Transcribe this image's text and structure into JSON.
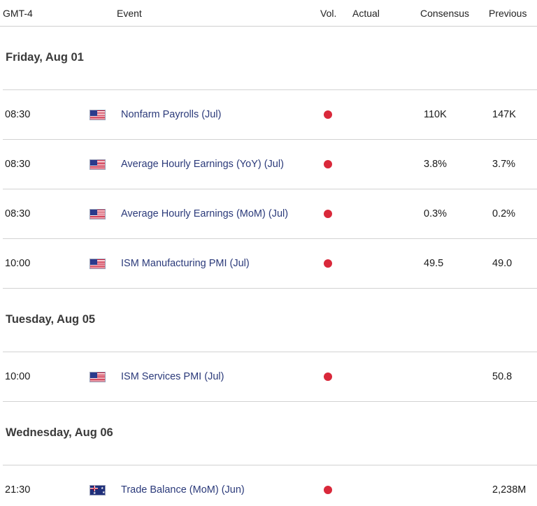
{
  "header": {
    "timezone": "GMT-4",
    "event": "Event",
    "vol": "Vol.",
    "actual": "Actual",
    "consensus": "Consensus",
    "previous": "Previous"
  },
  "days": [
    {
      "label": "Friday, Aug 01",
      "events": [
        {
          "time": "08:30",
          "country": "us-flag-icon",
          "name": "Nonfarm Payrolls (Jul)",
          "volatility": "high",
          "actual": "",
          "consensus": "110K",
          "previous": "147K"
        },
        {
          "time": "08:30",
          "country": "us-flag-icon",
          "name": "Average Hourly Earnings (YoY) (Jul)",
          "volatility": "high",
          "actual": "",
          "consensus": "3.8%",
          "previous": "3.7%"
        },
        {
          "time": "08:30",
          "country": "us-flag-icon",
          "name": "Average Hourly Earnings (MoM) (Jul)",
          "volatility": "high",
          "actual": "",
          "consensus": "0.3%",
          "previous": "0.2%"
        },
        {
          "time": "10:00",
          "country": "us-flag-icon",
          "name": "ISM Manufacturing PMI (Jul)",
          "volatility": "high",
          "actual": "",
          "consensus": "49.5",
          "previous": "49.0"
        }
      ]
    },
    {
      "label": "Tuesday, Aug 05",
      "events": [
        {
          "time": "10:00",
          "country": "us-flag-icon",
          "name": "ISM Services PMI (Jul)",
          "volatility": "high",
          "actual": "",
          "consensus": "",
          "previous": "50.8"
        }
      ]
    },
    {
      "label": "Wednesday, Aug 06",
      "events": [
        {
          "time": "21:30",
          "country": "australia-flag-icon",
          "name": "Trade Balance (MoM) (Jun)",
          "volatility": "high",
          "actual": "",
          "consensus": "",
          "previous": "2,238M"
        }
      ]
    }
  ],
  "colors": {
    "high_volatility_dot": "#d9283a",
    "event_link": "#2b3a7a"
  }
}
